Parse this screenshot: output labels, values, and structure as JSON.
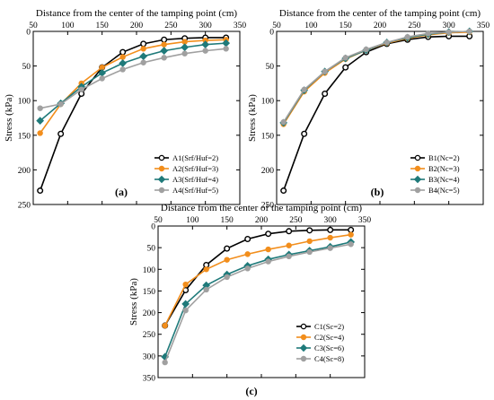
{
  "chart_data": [
    {
      "type": "line",
      "panel_label": "(a)",
      "title": "Distance from the center of the tamping point (cm)",
      "xlabel": "Distance from the center of the tamping point (cm)",
      "ylabel": "Stress (kPa)",
      "xlim": [
        50,
        350
      ],
      "ylim": [
        0,
        250
      ],
      "y_inverted": true,
      "x_axis_position": "top",
      "xticks": [
        50,
        100,
        150,
        200,
        250,
        300,
        350
      ],
      "yticks": [
        0,
        50,
        100,
        150,
        200,
        250
      ],
      "x": [
        60,
        90,
        120,
        150,
        180,
        210,
        240,
        270,
        300,
        330
      ],
      "legend_position": "bottom-right",
      "series": [
        {
          "name": "A1(Srf/Huf=2)",
          "color": "#000000",
          "marker": "circle",
          "values": [
            230,
            148,
            90,
            52,
            30,
            18,
            12,
            10,
            9,
            9
          ]
        },
        {
          "name": "A2(Srf/Huf=3)",
          "color": "#f28e1c",
          "marker": "circle",
          "values": [
            147,
            105,
            75,
            52,
            37,
            25,
            19,
            15,
            13,
            12
          ]
        },
        {
          "name": "A3(Srf/Huf=4)",
          "color": "#1f7a7a",
          "marker": "diamond",
          "values": [
            129,
            104,
            80,
            60,
            46,
            36,
            28,
            23,
            19,
            17
          ]
        },
        {
          "name": "A4(Srf/Huf=5)",
          "color": "#a0a0a0",
          "marker": "circle",
          "values": [
            111,
            105,
            84,
            68,
            55,
            45,
            38,
            32,
            28,
            25
          ]
        }
      ]
    },
    {
      "type": "line",
      "panel_label": "(b)",
      "title": "Distance from the center of the tamping point (cm)",
      "xlabel": "Distance from the center of the tamping point (cm)",
      "ylabel": "Stress (kPa)",
      "xlim": [
        50,
        350
      ],
      "ylim": [
        0,
        250
      ],
      "y_inverted": true,
      "x_axis_position": "top",
      "xticks": [
        50,
        100,
        150,
        200,
        250,
        300,
        350
      ],
      "yticks": [
        0,
        50,
        100,
        150,
        200,
        250
      ],
      "x": [
        60,
        90,
        120,
        150,
        180,
        210,
        240,
        270,
        300,
        330
      ],
      "legend_position": "bottom-right",
      "series": [
        {
          "name": "B1(Nc=2)",
          "color": "#000000",
          "marker": "circle",
          "values": [
            230,
            148,
            90,
            52,
            30,
            18,
            12,
            8,
            7,
            7
          ]
        },
        {
          "name": "B2(Nc=3)",
          "color": "#f28e1c",
          "marker": "circle",
          "values": [
            134,
            87,
            60,
            40,
            27,
            17,
            10,
            5,
            2,
            1
          ]
        },
        {
          "name": "B3(Nc=4)",
          "color": "#1f7a7a",
          "marker": "diamond",
          "values": [
            132,
            85,
            58,
            39,
            27,
            16,
            9,
            4,
            1,
            0
          ]
        },
        {
          "name": "B4(Nc=5)",
          "color": "#a0a0a0",
          "marker": "circle",
          "values": [
            131,
            84,
            58,
            38,
            26,
            16,
            8,
            3,
            1,
            0
          ]
        }
      ]
    },
    {
      "type": "line",
      "panel_label": "(c)",
      "title": "Distance from the center of the tamping point (cm)",
      "xlabel": "Distance from the center of the tamping point (cm)",
      "ylabel": "Stress (kPa)",
      "xlim": [
        50,
        350
      ],
      "ylim": [
        0,
        350
      ],
      "y_inverted": true,
      "x_axis_position": "top",
      "xticks": [
        50,
        100,
        150,
        200,
        250,
        300,
        350
      ],
      "yticks": [
        0,
        50,
        100,
        150,
        200,
        250,
        300,
        350
      ],
      "x": [
        60,
        90,
        120,
        150,
        180,
        210,
        240,
        270,
        300,
        330
      ],
      "legend_position": "bottom-right",
      "series": [
        {
          "name": "C1(Sc=2)",
          "color": "#000000",
          "marker": "circle",
          "values": [
            230,
            148,
            90,
            52,
            30,
            18,
            12,
            10,
            9,
            9
          ]
        },
        {
          "name": "C2(Sc=4)",
          "color": "#f28e1c",
          "marker": "circle",
          "values": [
            230,
            135,
            100,
            78,
            65,
            54,
            45,
            35,
            27,
            20
          ]
        },
        {
          "name": "C3(Sc=6)",
          "color": "#1f7a7a",
          "marker": "diamond",
          "values": [
            302,
            180,
            137,
            112,
            92,
            77,
            66,
            57,
            48,
            37
          ]
        },
        {
          "name": "C4(Sc=8)",
          "color": "#a0a0a0",
          "marker": "circle",
          "values": [
            315,
            195,
            147,
            118,
            98,
            82,
            70,
            60,
            51,
            42
          ]
        }
      ]
    }
  ]
}
